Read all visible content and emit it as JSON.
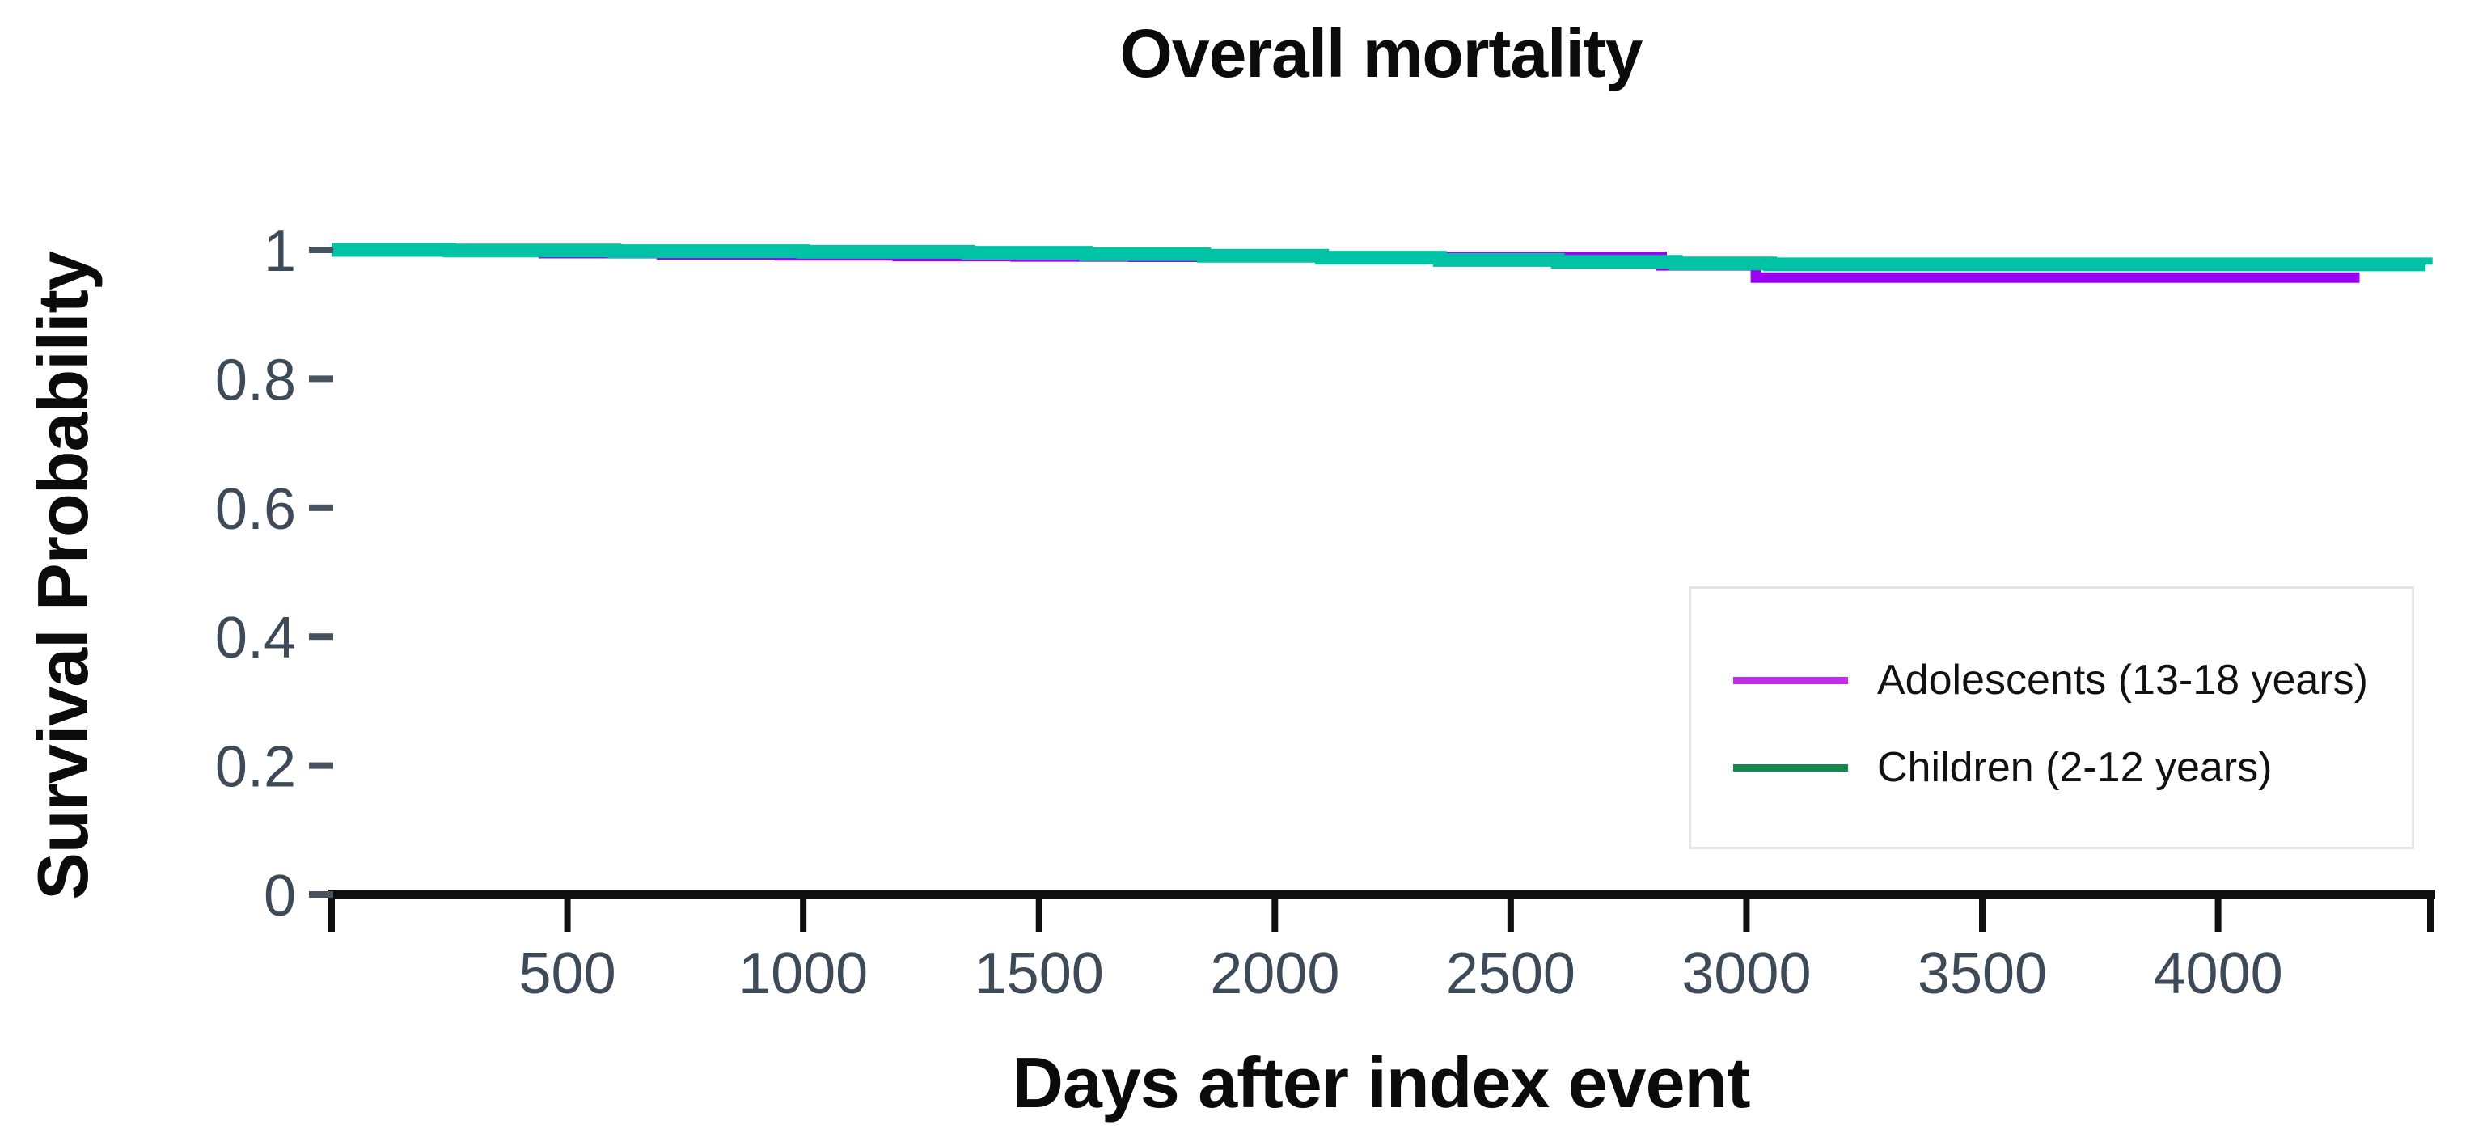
{
  "chart_data": {
    "type": "line",
    "subtype": "kaplan-meier-step-survival",
    "title": "Overall mortality",
    "xlabel": "Days after index event",
    "ylabel": "Survival Probability",
    "xlim": [
      0,
      4450
    ],
    "ylim": [
      0,
      1
    ],
    "xticks": [
      500,
      1000,
      1500,
      2000,
      2500,
      3000,
      3500,
      4000
    ],
    "yticks": [
      0,
      0.2,
      0.4,
      0.6,
      0.8,
      1
    ],
    "ytick_labels": [
      "0",
      "0.2",
      "0.4",
      "0.6",
      "0.8",
      "1"
    ],
    "grid": false,
    "legend_position": "lower right",
    "series": [
      {
        "name": "Adolescents (13-18 years)",
        "line_color": "#9B00F5",
        "legend_swatch_color": "#C32BEF",
        "points": [
          [
            0,
            1.0
          ],
          [
            200,
            0.9975
          ],
          [
            450,
            0.995
          ],
          [
            700,
            0.993
          ],
          [
            950,
            0.9915
          ],
          [
            1200,
            0.9905
          ],
          [
            1450,
            0.9898
          ],
          [
            1700,
            0.9893
          ],
          [
            2820,
            0.976
          ],
          [
            3020,
            0.957
          ],
          [
            4300,
            0.957
          ]
        ]
      },
      {
        "name": "Children (2-12 years)",
        "line_color": "#00C2A4",
        "legend_swatch_color": "#12894C",
        "points": [
          [
            0,
            1.0
          ],
          [
            250,
            0.999
          ],
          [
            600,
            0.998
          ],
          [
            1000,
            0.997
          ],
          [
            1350,
            0.9955
          ],
          [
            1600,
            0.9935
          ],
          [
            1850,
            0.991
          ],
          [
            2100,
            0.988
          ],
          [
            2350,
            0.9845
          ],
          [
            2600,
            0.9815
          ],
          [
            2850,
            0.979
          ],
          [
            3050,
            0.9775
          ],
          [
            4440,
            0.977
          ]
        ]
      }
    ],
    "colors": {
      "axis": "#0f0f0f",
      "tick_label": "#3d4a57",
      "tick_dash": "#47545f",
      "title_text": "#0b0b0b",
      "legend_border": "#e4e4e4",
      "background": "#ffffff"
    }
  }
}
